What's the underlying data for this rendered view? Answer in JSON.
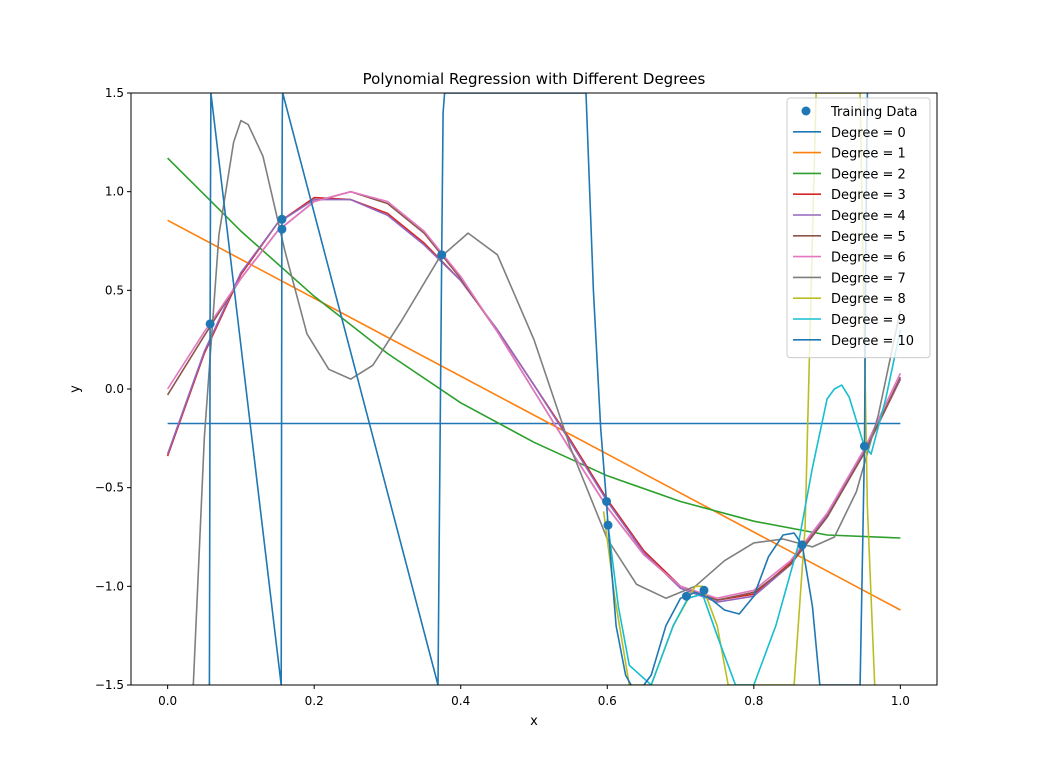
{
  "chart_data": {
    "type": "line",
    "title": "Polynomial Regression with Different Degrees",
    "xlabel": "x",
    "ylabel": "y",
    "xlim": [
      -0.05,
      1.05
    ],
    "ylim": [
      -1.5,
      1.5
    ],
    "grid": false,
    "legend_position": "top-right",
    "x_ticks": [
      0.0,
      0.2,
      0.4,
      0.6,
      0.8,
      1.0
    ],
    "x_tick_labels": [
      "0.0",
      "0.2",
      "0.4",
      "0.6",
      "0.8",
      "1.0"
    ],
    "y_ticks": [
      -1.5,
      -1.0,
      -0.5,
      0.0,
      0.5,
      1.0,
      1.5
    ],
    "y_tick_labels": [
      "−1.5",
      "−1.0",
      "−0.5",
      "0.0",
      "0.5",
      "1.0",
      "1.5"
    ],
    "training_data": {
      "name": "Training Data",
      "color": "#1f77b4",
      "x": [
        0.058,
        0.156,
        0.156,
        0.374,
        0.599,
        0.601,
        0.708,
        0.732,
        0.866,
        0.951
      ],
      "y": [
        0.33,
        0.86,
        0.81,
        0.68,
        -0.57,
        -0.69,
        -1.05,
        -1.02,
        -0.79,
        -0.29
      ]
    },
    "series": [
      {
        "name": "Degree = 0",
        "color": "#1f77b4",
        "x": [
          0.0,
          1.0
        ],
        "y": [
          -0.175,
          -0.175
        ]
      },
      {
        "name": "Degree = 1",
        "color": "#ff7f0e",
        "x": [
          0.0,
          1.0
        ],
        "y": [
          0.855,
          -1.12
        ]
      },
      {
        "name": "Degree = 2",
        "color": "#2ca02c",
        "x": [
          0.0,
          0.1,
          0.2,
          0.3,
          0.4,
          0.5,
          0.6,
          0.7,
          0.8,
          0.9,
          1.0
        ],
        "y": [
          1.17,
          0.8,
          0.47,
          0.18,
          -0.07,
          -0.27,
          -0.44,
          -0.57,
          -0.67,
          -0.74,
          -0.755
        ]
      },
      {
        "name": "Degree = 3",
        "color": "#d62728",
        "x": [
          0.0,
          0.05,
          0.1,
          0.15,
          0.2,
          0.25,
          0.3,
          0.35,
          0.4,
          0.45,
          0.5,
          0.55,
          0.6,
          0.65,
          0.7,
          0.75,
          0.8,
          0.85,
          0.9,
          0.95,
          1.0
        ],
        "y": [
          -0.34,
          0.18,
          0.58,
          0.84,
          0.97,
          0.96,
          0.89,
          0.74,
          0.55,
          0.3,
          0.02,
          -0.26,
          -0.56,
          -0.82,
          -1.0,
          -1.07,
          -1.04,
          -0.88,
          -0.64,
          -0.33,
          0.05
        ]
      },
      {
        "name": "Degree = 4",
        "color": "#9467bd",
        "x": [
          0.0,
          0.05,
          0.1,
          0.15,
          0.2,
          0.25,
          0.3,
          0.35,
          0.4,
          0.45,
          0.5,
          0.55,
          0.6,
          0.65,
          0.7,
          0.75,
          0.8,
          0.85,
          0.9,
          0.95,
          1.0
        ],
        "y": [
          -0.33,
          0.19,
          0.59,
          0.84,
          0.96,
          0.96,
          0.88,
          0.73,
          0.55,
          0.3,
          0.02,
          -0.27,
          -0.57,
          -0.83,
          -1.01,
          -1.08,
          -1.05,
          -0.89,
          -0.64,
          -0.32,
          0.05
        ]
      },
      {
        "name": "Degree = 5",
        "color": "#8c564b",
        "x": [
          0.0,
          0.05,
          0.1,
          0.15,
          0.2,
          0.25,
          0.3,
          0.35,
          0.4,
          0.45,
          0.5,
          0.55,
          0.6,
          0.65,
          0.7,
          0.75,
          0.8,
          0.85,
          0.9,
          0.95,
          1.0
        ],
        "y": [
          -0.03,
          0.27,
          0.56,
          0.8,
          0.95,
          1.0,
          0.94,
          0.79,
          0.56,
          0.29,
          -0.01,
          -0.31,
          -0.6,
          -0.84,
          -1.0,
          -1.07,
          -1.03,
          -0.89,
          -0.65,
          -0.33,
          0.06
        ]
      },
      {
        "name": "Degree = 6",
        "color": "#e377c2",
        "x": [
          0.0,
          0.05,
          0.1,
          0.15,
          0.2,
          0.25,
          0.3,
          0.35,
          0.4,
          0.45,
          0.5,
          0.55,
          0.6,
          0.65,
          0.7,
          0.75,
          0.8,
          0.85,
          0.9,
          0.95,
          1.0
        ],
        "y": [
          0.0,
          0.29,
          0.56,
          0.8,
          0.95,
          1.0,
          0.95,
          0.8,
          0.57,
          0.29,
          -0.01,
          -0.31,
          -0.6,
          -0.84,
          -1.0,
          -1.06,
          -1.02,
          -0.87,
          -0.63,
          -0.31,
          0.08
        ]
      },
      {
        "name": "Degree = 7",
        "color": "#7f7f7f",
        "x": [
          0.035,
          0.05,
          0.07,
          0.09,
          0.1,
          0.11,
          0.13,
          0.16,
          0.19,
          0.22,
          0.25,
          0.28,
          0.32,
          0.37,
          0.41,
          0.45,
          0.5,
          0.55,
          0.6,
          0.64,
          0.68,
          0.72,
          0.76,
          0.8,
          0.84,
          0.88,
          0.91,
          0.94,
          0.97,
          1.0
        ],
        "y": [
          -1.5,
          -0.25,
          0.78,
          1.25,
          1.36,
          1.34,
          1.18,
          0.7,
          0.28,
          0.1,
          0.05,
          0.12,
          0.35,
          0.66,
          0.79,
          0.68,
          0.25,
          -0.3,
          -0.76,
          -0.99,
          -1.06,
          -1.0,
          -0.87,
          -0.78,
          -0.76,
          -0.8,
          -0.75,
          -0.52,
          -0.13,
          0.4
        ]
      },
      {
        "name": "Degree = 8",
        "color": "#bcbd22",
        "x": [
          0.595,
          0.61,
          0.63,
          0.66,
          0.69,
          0.72,
          0.73,
          0.75,
          0.765,
          0.855,
          0.87,
          0.885,
          0.945,
          0.955,
          0.965
        ],
        "y": [
          -0.62,
          -1.05,
          -1.5,
          -1.5,
          -1.2,
          -1.0,
          -1.0,
          -1.2,
          -1.5,
          -1.5,
          -0.7,
          1.5,
          1.5,
          -0.6,
          -1.5
        ]
      },
      {
        "name": "Degree = 9",
        "color": "#17becf",
        "x": [
          0.6,
          0.615,
          0.63,
          0.66,
          0.69,
          0.71,
          0.73,
          0.75,
          0.775,
          0.8,
          0.83,
          0.86,
          0.88,
          0.9,
          0.91,
          0.92,
          0.93,
          0.95,
          0.96,
          0.98,
          1.0
        ],
        "y": [
          -0.66,
          -1.1,
          -1.4,
          -1.5,
          -1.2,
          -1.06,
          -1.04,
          -1.25,
          -1.5,
          -1.5,
          -1.2,
          -0.8,
          -0.4,
          -0.05,
          0.0,
          0.02,
          -0.04,
          -0.28,
          -0.33,
          -0.05,
          0.3
        ]
      },
      {
        "name": "Degree = 10",
        "color": "#1f77b4",
        "x": [
          0.057,
          0.0575,
          0.058,
          0.0585,
          0.059,
          0.155,
          0.1555,
          0.156,
          0.1565,
          0.157,
          0.369,
          0.371,
          0.374,
          0.376,
          0.378,
          0.571,
          0.581,
          0.591,
          0.599,
          0.601,
          0.612,
          0.625,
          0.64,
          0.66,
          0.68,
          0.7,
          0.708,
          0.72,
          0.74,
          0.76,
          0.78,
          0.8,
          0.82,
          0.84,
          0.855,
          0.866,
          0.88,
          0.89,
          0.945,
          0.951,
          0.953,
          0.955
        ],
        "y": [
          -1.5,
          -0.6,
          0.33,
          1.0,
          1.5,
          -1.5,
          0.0,
          0.84,
          1.4,
          1.5,
          -1.5,
          -0.6,
          0.68,
          1.4,
          1.5,
          1.5,
          0.5,
          -0.2,
          -0.57,
          -0.69,
          -1.2,
          -1.45,
          -1.55,
          -1.45,
          -1.2,
          -1.06,
          -1.05,
          -1.03,
          -1.06,
          -1.12,
          -1.14,
          -1.05,
          -0.85,
          -0.74,
          -0.73,
          -0.79,
          -1.1,
          -1.5,
          -1.5,
          -0.29,
          0.8,
          1.5
        ]
      }
    ]
  }
}
